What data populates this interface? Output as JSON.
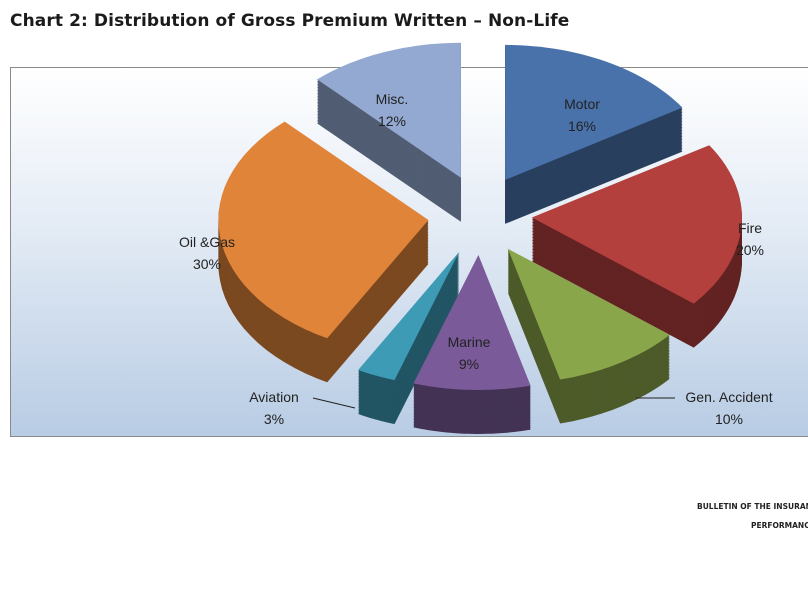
{
  "title": "Chart 2: Distribution of Gross Premium Written – Non-Life",
  "chart_data": {
    "type": "pie",
    "style": "3d-exploded",
    "title": "Chart 2: Distribution of Gross Premium Written – Non-Life",
    "categories": [
      "Motor",
      "Fire",
      "Gen. Accident",
      "Marine",
      "Aviation",
      "Oil &Gas",
      "Misc."
    ],
    "values": [
      16,
      20,
      10,
      9,
      3,
      30,
      12
    ],
    "value_labels": [
      "16%",
      "20%",
      "10%",
      "9%",
      "3%",
      "30%",
      "12%"
    ],
    "colors": [
      "#4a72aa",
      "#b3403d",
      "#8aa64a",
      "#7a5a99",
      "#3d9bb5",
      "#e0843a",
      "#93a9d1"
    ],
    "legend": "none"
  },
  "footer": {
    "line1": "BULLETIN OF THE INSURAN",
    "line2": "PERFORMANC"
  }
}
